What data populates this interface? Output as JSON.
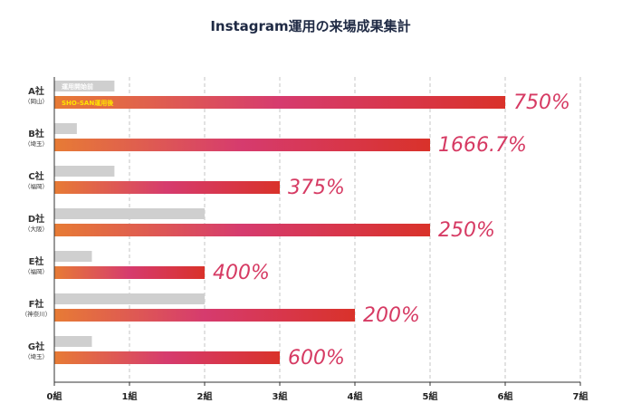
{
  "chart_data": {
    "type": "bar",
    "orientation": "horizontal",
    "title": "Instagram運用の来場成果集計",
    "categories": [
      {
        "company": "A社",
        "location": "（岡山）"
      },
      {
        "company": "B社",
        "location": "（埼玉）"
      },
      {
        "company": "C社",
        "location": "（福岡）"
      },
      {
        "company": "D社",
        "location": "（大阪）"
      },
      {
        "company": "E社",
        "location": "（福岡）"
      },
      {
        "company": "F社",
        "location": "（神奈川）"
      },
      {
        "company": "G社",
        "location": "（埼玉）"
      }
    ],
    "series": [
      {
        "name": "運用開始前",
        "color": "#cfcfcf",
        "values": [
          0.8,
          0.3,
          0.8,
          2,
          0.5,
          2,
          0.5
        ]
      },
      {
        "name": "SHO-SAN運用後",
        "gradient": [
          "#e77b35",
          "#d63b6e",
          "#d9322a"
        ],
        "values": [
          6,
          5,
          3,
          5,
          2,
          4,
          3
        ]
      }
    ],
    "data_labels": [
      "750%",
      "1666.7%",
      "375%",
      "250%",
      "400%",
      "200%",
      "600%"
    ],
    "x_ticks": [
      "0組",
      "1組",
      "2組",
      "3組",
      "4組",
      "5組",
      "6組",
      "7組"
    ],
    "xlim": [
      0,
      7
    ],
    "grid": "vertical dashed",
    "legend": "inside first category bars"
  }
}
